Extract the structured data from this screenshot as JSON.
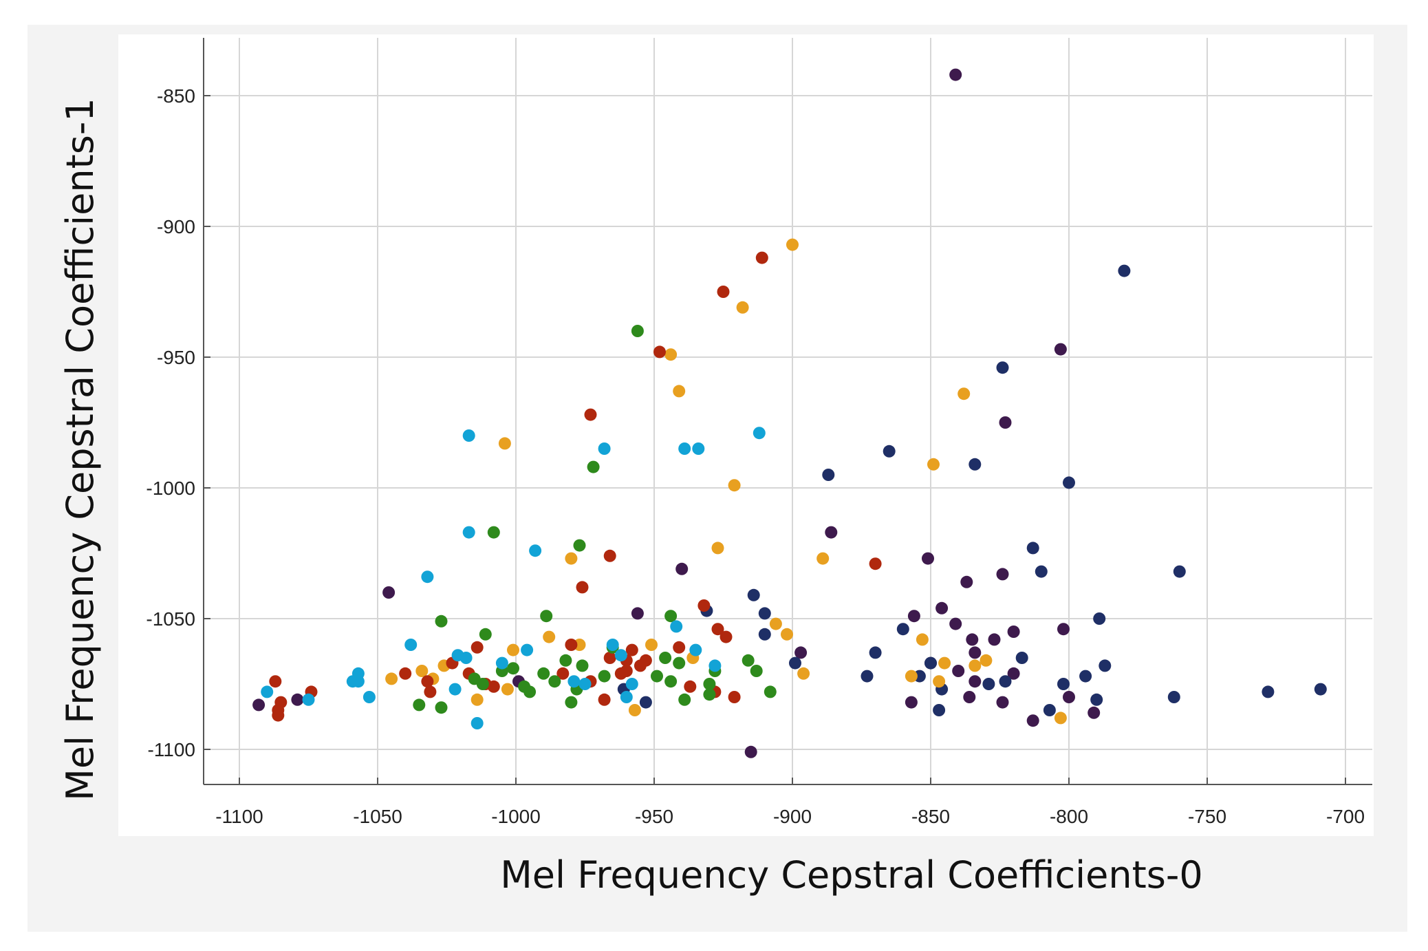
{
  "chart_data": {
    "type": "scatter",
    "title": "",
    "xlabel": "Mel Frequency Cepstral Coefficients-0",
    "ylabel": "Mel Frequency Cepstral Coefficients-1",
    "xlim": [
      -1113,
      -692
    ],
    "ylim": [
      -1113,
      -826
    ],
    "x_ticks": [
      -1100,
      -1050,
      -1000,
      -950,
      -900,
      -850,
      -800,
      -750,
      -700
    ],
    "y_ticks": [
      -850,
      -900,
      -950,
      -1000,
      -1050,
      -1100
    ],
    "x_tick_labels": [
      "-1100",
      "-1050",
      "-1000",
      "-950",
      "-900",
      "-850",
      "-800",
      "-750",
      "-700"
    ],
    "y_tick_labels": [
      "-850",
      "-900",
      "-950",
      "-1000",
      "-1050",
      "-1100"
    ],
    "grid": true,
    "legend": "none",
    "series": [
      {
        "name": "dark purple",
        "color": "#3e1a4d",
        "points": [
          [
            -841,
            -842
          ],
          [
            -803,
            -947
          ],
          [
            -823,
            -975
          ],
          [
            -886,
            -1017
          ],
          [
            -851,
            -1027
          ],
          [
            -940,
            -1031
          ],
          [
            -837,
            -1036
          ],
          [
            -824,
            -1033
          ],
          [
            -1046,
            -1040
          ],
          [
            -956,
            -1048
          ],
          [
            -846,
            -1046
          ],
          [
            -856,
            -1049
          ],
          [
            -841,
            -1052
          ],
          [
            -820,
            -1055
          ],
          [
            -802,
            -1054
          ],
          [
            -835,
            -1058
          ],
          [
            -827,
            -1058
          ],
          [
            -897,
            -1063
          ],
          [
            -834,
            -1063
          ],
          [
            -850,
            -1067
          ],
          [
            -840,
            -1070
          ],
          [
            -820,
            -1071
          ],
          [
            -834,
            -1074
          ],
          [
            -999,
            -1074
          ],
          [
            -824,
            -1082
          ],
          [
            -857,
            -1082
          ],
          [
            -836,
            -1080
          ],
          [
            -800,
            -1080
          ],
          [
            -813,
            -1089
          ],
          [
            -791,
            -1086
          ],
          [
            -1093,
            -1083
          ],
          [
            -1079,
            -1081
          ],
          [
            -915,
            -1101
          ]
        ]
      },
      {
        "name": "navy",
        "color": "#1f2f66",
        "points": [
          [
            -780,
            -917
          ],
          [
            -824,
            -954
          ],
          [
            -865,
            -986
          ],
          [
            -834,
            -991
          ],
          [
            -887,
            -995
          ],
          [
            -800,
            -998
          ],
          [
            -813,
            -1023
          ],
          [
            -810,
            -1032
          ],
          [
            -760,
            -1032
          ],
          [
            -914,
            -1041
          ],
          [
            -931,
            -1047
          ],
          [
            -910,
            -1048
          ],
          [
            -789,
            -1050
          ],
          [
            -860,
            -1054
          ],
          [
            -910,
            -1056
          ],
          [
            -870,
            -1063
          ],
          [
            -817,
            -1065
          ],
          [
            -899,
            -1067
          ],
          [
            -850,
            -1067
          ],
          [
            -787,
            -1068
          ],
          [
            -873,
            -1072
          ],
          [
            -854,
            -1072
          ],
          [
            -794,
            -1072
          ],
          [
            -829,
            -1075
          ],
          [
            -823,
            -1074
          ],
          [
            -802,
            -1075
          ],
          [
            -846,
            -1077
          ],
          [
            -709,
            -1077
          ],
          [
            -728,
            -1078
          ],
          [
            -762,
            -1080
          ],
          [
            -790,
            -1081
          ],
          [
            -953,
            -1082
          ],
          [
            -847,
            -1085
          ],
          [
            -807,
            -1085
          ],
          [
            -961,
            -1077
          ]
        ]
      },
      {
        "name": "orange",
        "color": "#e8a020",
        "points": [
          [
            -900,
            -907
          ],
          [
            -918,
            -931
          ],
          [
            -944,
            -949
          ],
          [
            -941,
            -963
          ],
          [
            -838,
            -964
          ],
          [
            -1004,
            -983
          ],
          [
            -921,
            -999
          ],
          [
            -849,
            -991
          ],
          [
            -927,
            -1023
          ],
          [
            -980,
            -1027
          ],
          [
            -889,
            -1027
          ],
          [
            -906,
            -1052
          ],
          [
            -902,
            -1056
          ],
          [
            -977,
            -1060
          ],
          [
            -988,
            -1057
          ],
          [
            -951,
            -1060
          ],
          [
            -853,
            -1058
          ],
          [
            -1001,
            -1062
          ],
          [
            -936,
            -1065
          ],
          [
            -845,
            -1067
          ],
          [
            -830,
            -1066
          ],
          [
            -834,
            -1068
          ],
          [
            -896,
            -1071
          ],
          [
            -1034,
            -1070
          ],
          [
            -1045,
            -1073
          ],
          [
            -857,
            -1072
          ],
          [
            -847,
            -1074
          ],
          [
            -1030,
            -1073
          ],
          [
            -1003,
            -1077
          ],
          [
            -1014,
            -1081
          ],
          [
            -957,
            -1085
          ],
          [
            -803,
            -1088
          ],
          [
            -1026,
            -1068
          ]
        ]
      },
      {
        "name": "dark red",
        "color": "#b0280e",
        "points": [
          [
            -911,
            -912
          ],
          [
            -925,
            -925
          ],
          [
            -948,
            -948
          ],
          [
            -973,
            -972
          ],
          [
            -966,
            -1026
          ],
          [
            -870,
            -1029
          ],
          [
            -976,
            -1038
          ],
          [
            -932,
            -1045
          ],
          [
            -927,
            -1054
          ],
          [
            -924,
            -1057
          ],
          [
            -1014,
            -1061
          ],
          [
            -980,
            -1060
          ],
          [
            -941,
            -1061
          ],
          [
            -966,
            -1065
          ],
          [
            -958,
            -1062
          ],
          [
            -953,
            -1066
          ],
          [
            -955,
            -1068
          ],
          [
            -960,
            -1066
          ],
          [
            -1023,
            -1067
          ],
          [
            -1017,
            -1071
          ],
          [
            -960,
            -1070
          ],
          [
            -983,
            -1071
          ],
          [
            -1040,
            -1071
          ],
          [
            -1032,
            -1074
          ],
          [
            -973,
            -1074
          ],
          [
            -937,
            -1076
          ],
          [
            -1008,
            -1076
          ],
          [
            -928,
            -1078
          ],
          [
            -1031,
            -1078
          ],
          [
            -968,
            -1081
          ],
          [
            -1074,
            -1078
          ],
          [
            -921,
            -1080
          ],
          [
            -1085,
            -1082
          ],
          [
            -1086,
            -1085
          ],
          [
            -1086,
            -1087
          ],
          [
            -1087,
            -1074
          ],
          [
            -1011,
            -1075
          ],
          [
            -962,
            -1071
          ]
        ]
      },
      {
        "name": "green",
        "color": "#2e8a1c",
        "points": [
          [
            -956,
            -940
          ],
          [
            -972,
            -992
          ],
          [
            -1008,
            -1017
          ],
          [
            -977,
            -1022
          ],
          [
            -989,
            -1049
          ],
          [
            -944,
            -1049
          ],
          [
            -1027,
            -1051
          ],
          [
            -1011,
            -1056
          ],
          [
            -916,
            -1066
          ],
          [
            -946,
            -1065
          ],
          [
            -982,
            -1066
          ],
          [
            -965,
            -1061
          ],
          [
            -1005,
            -1070
          ],
          [
            -990,
            -1071
          ],
          [
            -976,
            -1068
          ],
          [
            -941,
            -1067
          ],
          [
            -1001,
            -1069
          ],
          [
            -913,
            -1070
          ],
          [
            -986,
            -1074
          ],
          [
            -968,
            -1072
          ],
          [
            -949,
            -1072
          ],
          [
            -928,
            -1070
          ],
          [
            -944,
            -1074
          ],
          [
            -930,
            -1075
          ],
          [
            -1012,
            -1075
          ],
          [
            -997,
            -1076
          ],
          [
            -978,
            -1077
          ],
          [
            -908,
            -1078
          ],
          [
            -995,
            -1078
          ],
          [
            -930,
            -1079
          ],
          [
            -939,
            -1081
          ],
          [
            -980,
            -1082
          ],
          [
            -1035,
            -1083
          ],
          [
            -1027,
            -1084
          ],
          [
            -1015,
            -1073
          ]
        ]
      },
      {
        "name": "cyan",
        "color": "#12a3d6",
        "points": [
          [
            -1017,
            -980
          ],
          [
            -968,
            -985
          ],
          [
            -939,
            -985
          ],
          [
            -934,
            -985
          ],
          [
            -912,
            -979
          ],
          [
            -1017,
            -1017
          ],
          [
            -993,
            -1024
          ],
          [
            -1032,
            -1034
          ],
          [
            -942,
            -1053
          ],
          [
            -1038,
            -1060
          ],
          [
            -965,
            -1060
          ],
          [
            -935,
            -1062
          ],
          [
            -996,
            -1062
          ],
          [
            -1021,
            -1064
          ],
          [
            -1018,
            -1065
          ],
          [
            -1005,
            -1067
          ],
          [
            -928,
            -1068
          ],
          [
            -1057,
            -1071
          ],
          [
            -975,
            -1075
          ],
          [
            -1059,
            -1074
          ],
          [
            -1057,
            -1074
          ],
          [
            -1022,
            -1077
          ],
          [
            -958,
            -1075
          ],
          [
            -1090,
            -1078
          ],
          [
            -1053,
            -1080
          ],
          [
            -1075,
            -1081
          ],
          [
            -1014,
            -1090
          ],
          [
            -962,
            -1064
          ],
          [
            -979,
            -1074
          ],
          [
            -960,
            -1080
          ]
        ]
      }
    ]
  }
}
